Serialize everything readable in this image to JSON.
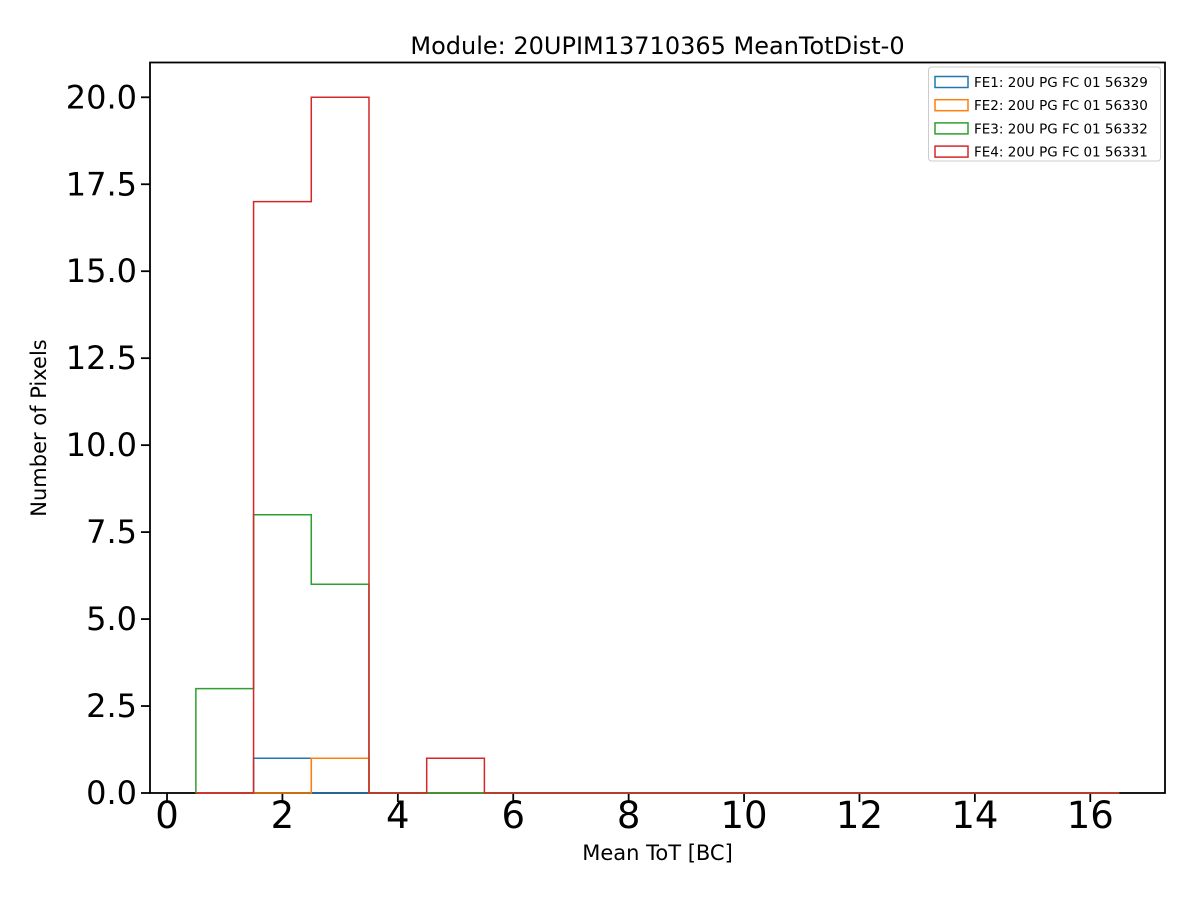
{
  "chart_data": {
    "type": "histogram-step",
    "title": "Module: 20UPIM13710365 MeanTotDist-0",
    "xlabel": "Mean ToT [BC]",
    "ylabel": "Number of Pixels",
    "xlim": [
      -0.295,
      17.295
    ],
    "ylim": [
      0,
      21
    ],
    "grid": false,
    "background_color": "#ffffff",
    "axis_color": "#000000",
    "xticks": [
      0,
      2,
      4,
      6,
      8,
      10,
      12,
      14,
      16
    ],
    "xtick_labels": [
      "0",
      "2",
      "4",
      "6",
      "8",
      "10",
      "12",
      "14",
      "16"
    ],
    "yticks": [
      0,
      2.5,
      5,
      7.5,
      10,
      12.5,
      15,
      17.5,
      20
    ],
    "ytick_labels": [
      "0.0",
      "2.5",
      "5.0",
      "7.5",
      "10.0",
      "12.5",
      "15.0",
      "17.5",
      "20.0"
    ],
    "bin_edges": [
      0.5,
      1.5,
      2.5,
      3.5,
      4.5,
      5.5,
      6.5,
      7.5,
      8.5,
      9.5,
      10.5,
      11.5,
      12.5,
      13.5,
      14.5,
      15.5,
      16.5
    ],
    "series": [
      {
        "id": "FE1",
        "name": "FE1: 20U PG FC 01 56329",
        "color": "#1f77b4",
        "values": [
          0,
          1,
          0,
          0,
          0,
          0,
          0,
          0,
          0,
          0,
          0,
          0,
          0,
          0,
          0,
          0
        ]
      },
      {
        "id": "FE2",
        "name": "FE2: 20U PG FC 01 56330",
        "color": "#ff7f0e",
        "values": [
          0,
          0,
          1,
          0,
          0,
          0,
          0,
          0,
          0,
          0,
          0,
          0,
          0,
          0,
          0,
          0
        ]
      },
      {
        "id": "FE3",
        "name": "FE3: 20U PG FC 01 56332",
        "color": "#2ca02c",
        "values": [
          3,
          8,
          6,
          0,
          0,
          0,
          0,
          0,
          0,
          0,
          0,
          0,
          0,
          0,
          0,
          0
        ]
      },
      {
        "id": "FE4",
        "name": "FE4: 20U PG FC 01 56331",
        "color": "#d62728",
        "values": [
          0,
          17,
          20,
          0,
          1,
          0,
          0,
          0,
          0,
          0,
          0,
          0,
          0,
          0,
          0,
          0
        ]
      }
    ],
    "legend": {
      "position": "upper-right",
      "border_color": "#cccccc",
      "background_color": "#ffffff",
      "entries": [
        "FE1: 20U PG FC 01 56329",
        "FE2: 20U PG FC 01 56330",
        "FE3: 20U PG FC 01 56332",
        "FE4: 20U PG FC 01 56331"
      ]
    }
  }
}
